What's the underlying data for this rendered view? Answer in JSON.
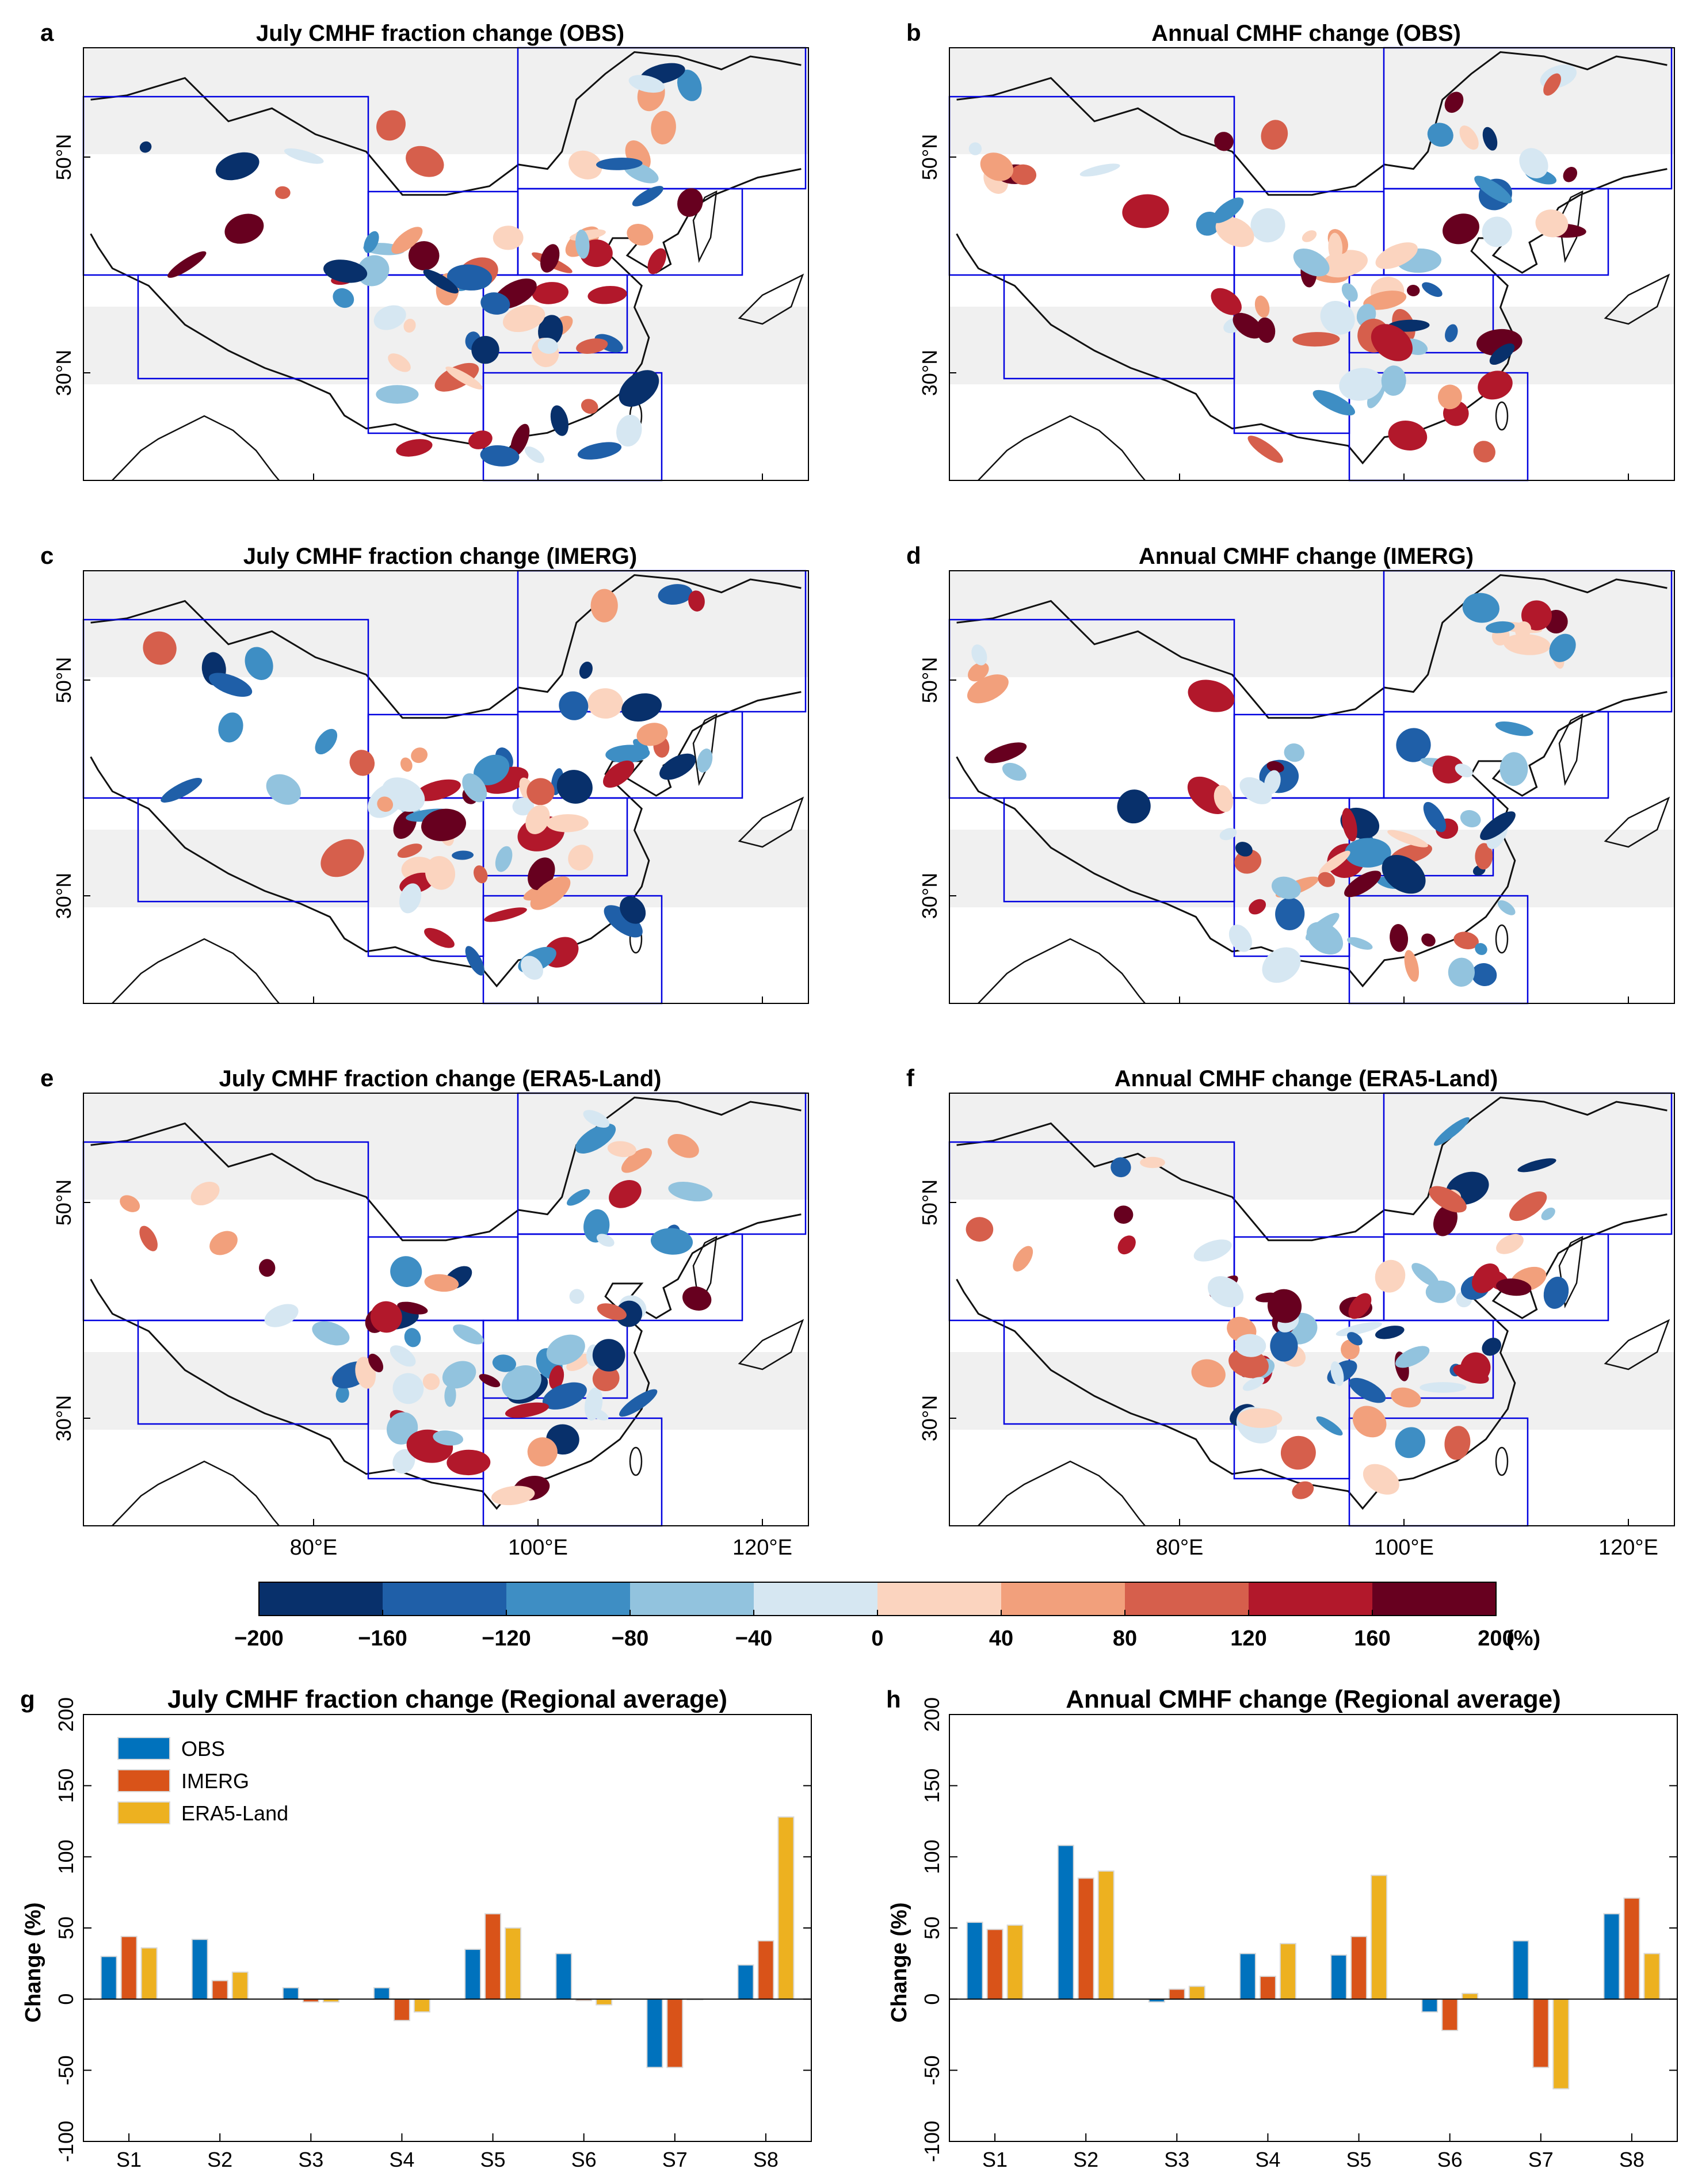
{
  "figure": {
    "panels": [
      {
        "letter": "a",
        "title": "July CMHF fraction change (OBS)",
        "seed": 11,
        "xticks": []
      },
      {
        "letter": "b",
        "title": "Annual CMHF change (OBS)",
        "seed": 23,
        "xticks": []
      },
      {
        "letter": "c",
        "title": "July CMHF fraction change (IMERG)",
        "seed": 37,
        "xticks": []
      },
      {
        "letter": "d",
        "title": "Annual CMHF change (IMERG)",
        "seed": 41,
        "xticks": []
      },
      {
        "letter": "e",
        "title": "July CMHF fraction change (ERA5-Land)",
        "seed": 53,
        "xticks": [
          "80°E",
          "100°E",
          "120°E"
        ]
      },
      {
        "letter": "f",
        "title": "Annual CMHF change (ERA5-Land)",
        "seed": 67,
        "xticks": [
          "80°E",
          "100°E",
          "120°E"
        ]
      }
    ],
    "lat_labels": [
      "50°N",
      "30°N"
    ],
    "colorbar": {
      "ticks": [
        "−200",
        "−160",
        "−120",
        "−80",
        "−40",
        "0",
        "40",
        "80",
        "120",
        "160",
        "200"
      ],
      "unit": "(%)",
      "colors": [
        "#08306b",
        "#1f5fa8",
        "#3e8ec4",
        "#92c3de",
        "#d6e7f2",
        "#fbd4bf",
        "#f2a07c",
        "#d65f4c",
        "#b2182b",
        "#67001f"
      ]
    }
  },
  "chart_data": [
    {
      "type": "bar",
      "letter": "g",
      "title": "July CMHF fraction change (Regional average)",
      "xlabel": "",
      "ylabel": "Change (%)",
      "ylim": [
        -100,
        200
      ],
      "yticks": [
        "-100",
        "-50",
        "0",
        "50",
        "100",
        "150",
        "200"
      ],
      "categories": [
        "S1",
        "S2",
        "S3",
        "S4",
        "S5",
        "S6",
        "S7",
        "S8"
      ],
      "series": [
        {
          "name": "OBS",
          "color": "#0072bd",
          "values": [
            30,
            42,
            8,
            8,
            35,
            32,
            -48,
            24
          ]
        },
        {
          "name": "IMERG",
          "color": "#d95319",
          "values": [
            44,
            13,
            -2,
            -15,
            60,
            -1,
            -48,
            41
          ]
        },
        {
          "name": "ERA5-Land",
          "color": "#edb120",
          "values": [
            36,
            19,
            -2,
            -9,
            50,
            -4,
            0,
            128
          ]
        }
      ],
      "legend": "top-left"
    },
    {
      "type": "bar",
      "letter": "h",
      "title": "Annual CMHF change (Regional average)",
      "xlabel": "",
      "ylabel": "Change (%)",
      "ylim": [
        -100,
        200
      ],
      "yticks": [
        "-100",
        "-50",
        "0",
        "50",
        "100",
        "150",
        "200"
      ],
      "categories": [
        "S1",
        "S2",
        "S3",
        "S4",
        "S5",
        "S6",
        "S7",
        "S8"
      ],
      "series": [
        {
          "name": "OBS",
          "color": "#0072bd",
          "values": [
            54,
            108,
            -2,
            32,
            31,
            -9,
            41,
            60
          ]
        },
        {
          "name": "IMERG",
          "color": "#d95319",
          "values": [
            49,
            85,
            7,
            16,
            44,
            -22,
            -48,
            71
          ]
        },
        {
          "name": "ERA5-Land",
          "color": "#edb120",
          "values": [
            52,
            90,
            9,
            39,
            87,
            4,
            -63,
            32
          ]
        }
      ]
    }
  ]
}
